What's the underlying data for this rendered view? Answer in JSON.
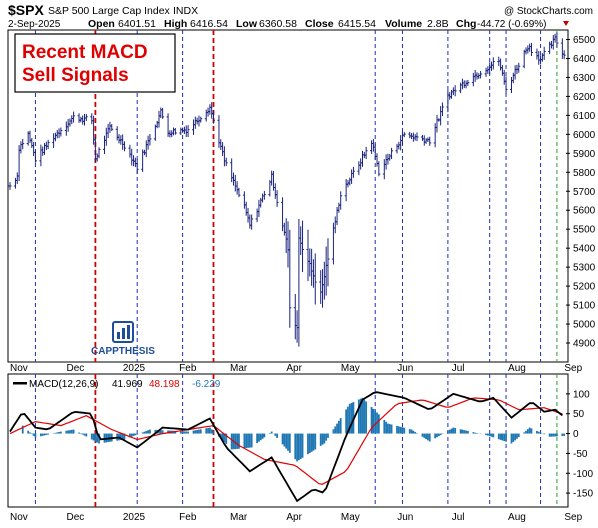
{
  "header": {
    "symbol": "$SPX",
    "name": "S&P 500 Large Cap Index",
    "exchange": "INDX",
    "date": "2-Sep-2025",
    "open_label": "Open",
    "open": "6401.51",
    "high_label": "High",
    "high": "6416.54",
    "low_label": "Low",
    "low": "6360.58",
    "close_label": "Close",
    "close": "6415.54",
    "volume_label": "Volume",
    "volume": "2.8B",
    "chg_label": "Chg",
    "chg": "-44.72 (-0.69%)",
    "source": "@ StockCharts.com"
  },
  "annotation": {
    "line1": "Recent MACD",
    "line2": "Sell Signals"
  },
  "logo": {
    "text": "CAPPTHESIS"
  },
  "colors": {
    "price_bars": "#1a237e",
    "macd_line": "#000000",
    "signal_line": "#e00000",
    "histogram": "#1f77b4",
    "blue_dashed": "#1f2fbf",
    "red_dashed": "#d00000",
    "green_dashed": "#2a9d2a",
    "annotation_text": "#e00000"
  },
  "macd_legend": {
    "label": "MACD(12,26,9)",
    "macd": "41.969",
    "signal": "48.198",
    "histogram": "-6.229"
  },
  "chart_data": [
    {
      "type": "ohlc",
      "title": "$SPX S&P 500 Large Cap Index INDX",
      "x_axis": {
        "type": "date",
        "range": [
          "2024-11-01",
          "2025-09-03"
        ],
        "month_labels": [
          "Nov",
          "Dec",
          "2025",
          "Feb",
          "Mar",
          "Apr",
          "May",
          "Jun",
          "Jul",
          "Aug",
          "Sep"
        ]
      },
      "ylim": [
        4800,
        6550
      ],
      "y_ticks": [
        4900,
        5000,
        5100,
        5200,
        5300,
        5400,
        5500,
        5600,
        5700,
        5800,
        5900,
        6000,
        6100,
        6200,
        6300,
        6400,
        6500
      ],
      "y_position": "right",
      "grid": false,
      "price_path": [
        {
          "date": "2024-11-01",
          "close": 5728
        },
        {
          "date": "2024-11-05",
          "close": 5782
        },
        {
          "date": "2024-11-06",
          "close": 5929
        },
        {
          "date": "2024-11-11",
          "close": 6001
        },
        {
          "date": "2024-11-15",
          "close": 5870
        },
        {
          "date": "2024-11-19",
          "close": 5916
        },
        {
          "date": "2024-11-25",
          "close": 5987
        },
        {
          "date": "2024-12-06",
          "close": 6090
        },
        {
          "date": "2024-12-16",
          "close": 6074
        },
        {
          "date": "2024-12-18",
          "close": 5872
        },
        {
          "date": "2024-12-26",
          "close": 6037
        },
        {
          "date": "2025-01-03",
          "close": 5942
        },
        {
          "date": "2025-01-10",
          "close": 5827
        },
        {
          "date": "2025-01-23",
          "close": 6119
        },
        {
          "date": "2025-01-27",
          "close": 6012
        },
        {
          "date": "2025-02-07",
          "close": 6026
        },
        {
          "date": "2025-02-19",
          "close": 6144
        },
        {
          "date": "2025-02-27",
          "close": 5861
        },
        {
          "date": "2025-03-10",
          "close": 5614
        },
        {
          "date": "2025-03-13",
          "close": 5521
        },
        {
          "date": "2025-03-25",
          "close": 5776
        },
        {
          "date": "2025-04-03",
          "close": 5396
        },
        {
          "date": "2025-04-04",
          "close": 5074
        },
        {
          "date": "2025-04-08",
          "close": 4982
        },
        {
          "date": "2025-04-09",
          "close": 5456
        },
        {
          "date": "2025-04-21",
          "close": 5158
        },
        {
          "date": "2025-05-02",
          "close": 5687
        },
        {
          "date": "2025-05-12",
          "close": 5844
        },
        {
          "date": "2025-05-19",
          "close": 5963
        },
        {
          "date": "2025-05-23",
          "close": 5803
        },
        {
          "date": "2025-06-06",
          "close": 6000
        },
        {
          "date": "2025-06-20",
          "close": 5967
        },
        {
          "date": "2025-06-30",
          "close": 6205
        },
        {
          "date": "2025-07-10",
          "close": 6280
        },
        {
          "date": "2025-07-28",
          "close": 6390
        },
        {
          "date": "2025-08-01",
          "close": 6238
        },
        {
          "date": "2025-08-13",
          "close": 6466
        },
        {
          "date": "2025-08-20",
          "close": 6396
        },
        {
          "date": "2025-08-28",
          "close": 6502
        },
        {
          "date": "2025-09-02",
          "close": 6415
        }
      ],
      "vertical_lines": [
        {
          "date": "2024-11-15",
          "style": "blue-dashed"
        },
        {
          "date": "2024-12-18",
          "style": "red-dashed"
        },
        {
          "date": "2025-01-10",
          "style": "blue-dashed"
        },
        {
          "date": "2025-02-04",
          "style": "blue-dashed"
        },
        {
          "date": "2025-02-21",
          "style": "red-dashed"
        },
        {
          "date": "2025-05-21",
          "style": "blue-dashed"
        },
        {
          "date": "2025-06-05",
          "style": "blue-dashed"
        },
        {
          "date": "2025-06-30",
          "style": "blue-dashed"
        },
        {
          "date": "2025-07-23",
          "style": "blue-dashed"
        },
        {
          "date": "2025-08-01",
          "style": "blue-dashed"
        },
        {
          "date": "2025-08-20",
          "style": "blue-dashed"
        },
        {
          "date": "2025-08-29",
          "style": "green-dashed"
        }
      ]
    },
    {
      "type": "line",
      "title": "MACD(12,26,9)",
      "ylim": [
        -185,
        150
      ],
      "y_ticks": [
        -150,
        -100,
        -50,
        0,
        50,
        100
      ],
      "y_position": "right",
      "series": [
        {
          "name": "MACD",
          "points": [
            {
              "date": "2024-11-01",
              "value": 5
            },
            {
              "date": "2024-11-08",
              "value": 55
            },
            {
              "date": "2024-11-15",
              "value": 15
            },
            {
              "date": "2024-11-22",
              "value": 10
            },
            {
              "date": "2024-12-06",
              "value": 55
            },
            {
              "date": "2024-12-16",
              "value": 50
            },
            {
              "date": "2024-12-20",
              "value": -15
            },
            {
              "date": "2024-12-31",
              "value": -10
            },
            {
              "date": "2025-01-10",
              "value": -35
            },
            {
              "date": "2025-01-24",
              "value": 15
            },
            {
              "date": "2025-02-07",
              "value": 10
            },
            {
              "date": "2025-02-19",
              "value": 38
            },
            {
              "date": "2025-02-28",
              "value": -35
            },
            {
              "date": "2025-03-13",
              "value": -95
            },
            {
              "date": "2025-03-25",
              "value": -60
            },
            {
              "date": "2025-04-08",
              "value": -170
            },
            {
              "date": "2025-04-17",
              "value": -140
            },
            {
              "date": "2025-04-23",
              "value": -150
            },
            {
              "date": "2025-05-05",
              "value": -5
            },
            {
              "date": "2025-05-14",
              "value": 85
            },
            {
              "date": "2025-05-21",
              "value": 105
            },
            {
              "date": "2025-06-06",
              "value": 90
            },
            {
              "date": "2025-06-20",
              "value": 60
            },
            {
              "date": "2025-07-03",
              "value": 100
            },
            {
              "date": "2025-07-18",
              "value": 80
            },
            {
              "date": "2025-07-25",
              "value": 90
            },
            {
              "date": "2025-08-04",
              "value": 40
            },
            {
              "date": "2025-08-15",
              "value": 80
            },
            {
              "date": "2025-08-22",
              "value": 55
            },
            {
              "date": "2025-08-28",
              "value": 60
            },
            {
              "date": "2025-09-02",
              "value": 42
            }
          ]
        },
        {
          "name": "Signal",
          "points": [
            {
              "date": "2024-11-01",
              "value": 0
            },
            {
              "date": "2024-11-15",
              "value": 30
            },
            {
              "date": "2024-11-29",
              "value": 20
            },
            {
              "date": "2024-12-13",
              "value": 45
            },
            {
              "date": "2024-12-27",
              "value": 10
            },
            {
              "date": "2025-01-10",
              "value": -15
            },
            {
              "date": "2025-01-24",
              "value": 0
            },
            {
              "date": "2025-02-07",
              "value": 10
            },
            {
              "date": "2025-02-21",
              "value": 20
            },
            {
              "date": "2025-03-07",
              "value": -30
            },
            {
              "date": "2025-03-21",
              "value": -65
            },
            {
              "date": "2025-04-07",
              "value": -80
            },
            {
              "date": "2025-04-21",
              "value": -130
            },
            {
              "date": "2025-05-05",
              "value": -95
            },
            {
              "date": "2025-05-19",
              "value": 15
            },
            {
              "date": "2025-06-02",
              "value": 75
            },
            {
              "date": "2025-06-16",
              "value": 85
            },
            {
              "date": "2025-06-30",
              "value": 65
            },
            {
              "date": "2025-07-14",
              "value": 90
            },
            {
              "date": "2025-07-28",
              "value": 85
            },
            {
              "date": "2025-08-08",
              "value": 60
            },
            {
              "date": "2025-08-22",
              "value": 65
            },
            {
              "date": "2025-09-02",
              "value": 48
            }
          ]
        },
        {
          "name": "Histogram",
          "type": "bar",
          "points": [
            {
              "date": "2024-11-08",
              "value": 20
            },
            {
              "date": "2024-11-15",
              "value": -10
            },
            {
              "date": "2024-11-29",
              "value": 5
            },
            {
              "date": "2024-12-06",
              "value": 10
            },
            {
              "date": "2024-12-20",
              "value": -25
            },
            {
              "date": "2025-01-03",
              "value": -15
            },
            {
              "date": "2025-01-17",
              "value": 10
            },
            {
              "date": "2025-02-07",
              "value": 5
            },
            {
              "date": "2025-02-19",
              "value": 15
            },
            {
              "date": "2025-03-03",
              "value": -40
            },
            {
              "date": "2025-03-14",
              "value": -35
            },
            {
              "date": "2025-03-25",
              "value": 5
            },
            {
              "date": "2025-04-08",
              "value": -70
            },
            {
              "date": "2025-04-23",
              "value": -25
            },
            {
              "date": "2025-05-07",
              "value": 75
            },
            {
              "date": "2025-05-14",
              "value": 90
            },
            {
              "date": "2025-05-28",
              "value": 25
            },
            {
              "date": "2025-06-10",
              "value": 10
            },
            {
              "date": "2025-06-20",
              "value": -20
            },
            {
              "date": "2025-07-03",
              "value": 15
            },
            {
              "date": "2025-07-22",
              "value": -5
            },
            {
              "date": "2025-08-04",
              "value": -25
            },
            {
              "date": "2025-08-14",
              "value": 15
            },
            {
              "date": "2025-08-25",
              "value": -8
            },
            {
              "date": "2025-09-02",
              "value": -6
            }
          ]
        }
      ]
    }
  ]
}
